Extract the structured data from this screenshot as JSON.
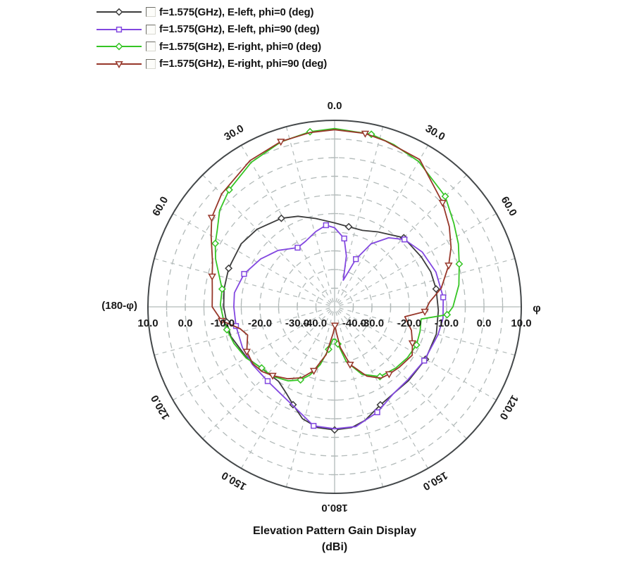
{
  "legend": {
    "items": [
      {
        "label": "f=1.575(GHz), E-left, phi=0 (deg)",
        "color": "#3c3c3c",
        "marker": "diamond"
      },
      {
        "label": "f=1.575(GHz), E-left, phi=90 (deg)",
        "color": "#8247e0",
        "marker": "square"
      },
      {
        "label": "f=1.575(GHz), E-right, phi=0 (deg)",
        "color": "#35c524",
        "marker": "diamond"
      },
      {
        "label": "f=1.575(GHz), E-right, phi=90 (deg)",
        "color": "#97372a",
        "marker": "triangle-down"
      }
    ]
  },
  "chart_data": {
    "type": "line",
    "polar": true,
    "title": "Elevation Pattern Gain Display",
    "subtitle": "(dBi)",
    "units": "dBi",
    "r_min": -40,
    "r_max": 10,
    "ring_step": 5,
    "spoke_step_deg": 15,
    "grid_color": "#b2bab9",
    "outer_circle_color": "#44484a",
    "text_color": "#1a1a1a",
    "right_axis_label": "φ",
    "left_axis_label": "(180-φ)",
    "angle_labels": [
      {
        "deg": 0,
        "text": "0.0"
      },
      {
        "deg": 30,
        "text": "30.0"
      },
      {
        "deg": 60,
        "text": "60.0"
      },
      {
        "deg": 120,
        "text": "120.0"
      },
      {
        "deg": 150,
        "text": "150.0"
      },
      {
        "deg": 180,
        "text": "180.0"
      },
      {
        "deg": 210,
        "text": "150.0"
      },
      {
        "deg": 240,
        "text": "120.0"
      },
      {
        "deg": 300,
        "text": "60.0"
      },
      {
        "deg": 330,
        "text": "30.0"
      }
    ],
    "radial_tick_labels": [
      "10.0",
      "0.0",
      "-10.0",
      "-20.0",
      "-30.0",
      "-40.0",
      "-40.0",
      "-30.0",
      "-20.0",
      "-10.0",
      "0.0",
      "10.0"
    ],
    "radial_tick_values": [
      10,
      0,
      -10,
      -20,
      -30,
      -40,
      -40,
      -30,
      -20,
      -10,
      0,
      10
    ],
    "series": [
      {
        "name": "f=1.575(GHz), E-left, phi=0 (deg)",
        "color": "#3c3c3c",
        "marker": "diamond",
        "points": [
          [
            0,
            -17.5
          ],
          [
            10,
            -18.2
          ],
          [
            20,
            -18.2
          ],
          [
            30,
            -16.8
          ],
          [
            45,
            -13.8
          ],
          [
            60,
            -13.2
          ],
          [
            70,
            -12.6
          ],
          [
            80,
            -12.4
          ],
          [
            92,
            -12.2
          ],
          [
            105,
            -11.8
          ],
          [
            120,
            -11.9
          ],
          [
            135,
            -12.0
          ],
          [
            146,
            -11.9
          ],
          [
            155,
            -11.0
          ],
          [
            165,
            -8.5
          ],
          [
            172,
            -7.3
          ],
          [
            180,
            -7.0
          ],
          [
            188,
            -7.3
          ],
          [
            196,
            -8.8
          ],
          [
            203,
            -11.5
          ],
          [
            209,
            -13.4
          ],
          [
            217,
            -15.0
          ],
          [
            230,
            -14.4
          ],
          [
            240,
            -12.8
          ],
          [
            254,
            -11.1
          ],
          [
            262,
            -10.8
          ],
          [
            270,
            -10.3
          ],
          [
            279,
            -10.0
          ],
          [
            290,
            -9.8
          ],
          [
            304,
            -9.8
          ],
          [
            315,
            -10.6
          ],
          [
            329,
            -12.3
          ],
          [
            338,
            -13.8
          ],
          [
            348,
            -15.8
          ],
          [
            360,
            -17.5
          ]
        ]
      },
      {
        "name": "f=1.575(GHz), E-left, phi=90 (deg)",
        "color": "#8247e0",
        "marker": "square",
        "points": [
          [
            0,
            -18.8
          ],
          [
            8,
            -21.5
          ],
          [
            13,
            -26.0
          ],
          [
            18,
            -32.5
          ],
          [
            24,
            -26.0
          ],
          [
            30,
            -20.5
          ],
          [
            38,
            -16.5
          ],
          [
            46,
            -14.0
          ],
          [
            58,
            -12.3
          ],
          [
            71,
            -11.3
          ],
          [
            85,
            -10.8
          ],
          [
            96,
            -10.8
          ],
          [
            105,
            -11.3
          ],
          [
            121,
            -12.0
          ],
          [
            135,
            -12.3
          ],
          [
            146,
            -11.9
          ],
          [
            158,
            -9.5
          ],
          [
            170,
            -7.4
          ],
          [
            180,
            -7.3
          ],
          [
            190,
            -7.6
          ],
          [
            202,
            -11.1
          ],
          [
            212,
            -12.6
          ],
          [
            222,
            -13.2
          ],
          [
            235,
            -13.1
          ],
          [
            246,
            -13.0
          ],
          [
            259,
            -13.1
          ],
          [
            270,
            -13.0
          ],
          [
            278,
            -12.9
          ],
          [
            290,
            -14.2
          ],
          [
            303,
            -16.4
          ],
          [
            315,
            -18.6
          ],
          [
            328,
            -21.3
          ],
          [
            336,
            -20.8
          ],
          [
            346,
            -19.2
          ],
          [
            354,
            -18.0
          ],
          [
            360,
            -18.8
          ]
        ]
      },
      {
        "name": "f=1.575(GHz), E-right, phi=0 (deg)",
        "color": "#35c524",
        "marker": "diamond",
        "points": [
          [
            0,
            7.8
          ],
          [
            12,
            7.3
          ],
          [
            20,
            6.3
          ],
          [
            30,
            5.0
          ],
          [
            45,
            1.9
          ],
          [
            55,
            -1.0
          ],
          [
            63,
            -2.8
          ],
          [
            71,
            -4.7
          ],
          [
            80,
            -6.2
          ],
          [
            90,
            -8.3
          ],
          [
            94,
            -9.8
          ],
          [
            98,
            -16.6
          ],
          [
            106,
            -16.2
          ],
          [
            115,
            -15.8
          ],
          [
            125,
            -16.2
          ],
          [
            135,
            -16.8
          ],
          [
            147,
            -17.7
          ],
          [
            158,
            -20.5
          ],
          [
            168,
            -25.0
          ],
          [
            175,
            -30.0
          ],
          [
            178,
            -31.3
          ],
          [
            183,
            -31.3
          ],
          [
            188,
            -28.5
          ],
          [
            194,
            -24.0
          ],
          [
            200,
            -20.5
          ],
          [
            205,
            -18.4
          ],
          [
            212,
            -16.6
          ],
          [
            222,
            -15.0
          ],
          [
            230,
            -14.5
          ],
          [
            240,
            -12.6
          ],
          [
            250,
            -11.3
          ],
          [
            258,
            -10.5
          ],
          [
            264,
            -10.0
          ],
          [
            271,
            -9.4
          ],
          [
            279,
            -9.5
          ],
          [
            285,
            -8.0
          ],
          [
            292,
            -5.6
          ],
          [
            298,
            -3.8
          ],
          [
            303,
            -2.5
          ],
          [
            310,
            0.2
          ],
          [
            318,
            2.2
          ],
          [
            330,
            4.7
          ],
          [
            342,
            6.5
          ],
          [
            352,
            7.4
          ],
          [
            360,
            7.8
          ]
        ]
      },
      {
        "name": "f=1.575(GHz), E-right, phi=90 (deg)",
        "color": "#97372a",
        "marker": "triangle-down",
        "points": [
          [
            0,
            7.5
          ],
          [
            10,
            7.2
          ],
          [
            17,
            6.5
          ],
          [
            30,
            5.6
          ],
          [
            46,
            0.2
          ],
          [
            55,
            -2.5
          ],
          [
            63,
            -5.0
          ],
          [
            70,
            -7.5
          ],
          [
            80,
            -11.0
          ],
          [
            87,
            -14.5
          ],
          [
            93,
            -15.8
          ],
          [
            98,
            -21.0
          ],
          [
            107,
            -18.5
          ],
          [
            115,
            -17.0
          ],
          [
            122,
            -15.5
          ],
          [
            133,
            -16.3
          ],
          [
            141,
            -16.8
          ],
          [
            147,
            -17.2
          ],
          [
            155,
            -19.5
          ],
          [
            165,
            -24.0
          ],
          [
            172,
            -29.0
          ],
          [
            176,
            -33.0
          ],
          [
            179,
            -35.0
          ],
          [
            183,
            -33.0
          ],
          [
            190,
            -27.0
          ],
          [
            198,
            -22.0
          ],
          [
            205,
            -19.0
          ],
          [
            213,
            -17.0
          ],
          [
            222,
            -15.2
          ],
          [
            228,
            -14.0
          ],
          [
            235,
            -13.3
          ],
          [
            243,
            -13.6
          ],
          [
            252,
            -15.5
          ],
          [
            257,
            -14.0
          ],
          [
            263,
            -9.5
          ],
          [
            270,
            -7.2
          ],
          [
            277,
            -7.0
          ],
          [
            284,
            -6.2
          ],
          [
            290,
            -5.2
          ],
          [
            300,
            -1.8
          ],
          [
            306,
            0.7
          ],
          [
            315,
            2.8
          ],
          [
            330,
            5.3
          ],
          [
            342,
            6.6
          ],
          [
            352,
            7.2
          ],
          [
            360,
            7.5
          ]
        ]
      }
    ]
  }
}
